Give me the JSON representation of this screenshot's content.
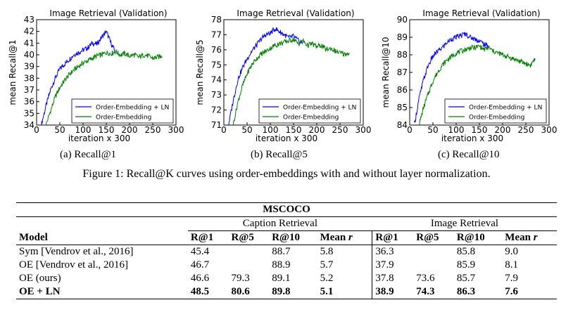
{
  "chart_data": [
    {
      "type": "line",
      "title": "Image Retrieval (Validation)",
      "xlabel": "iteration x 300",
      "ylabel": "mean Recall@1",
      "xlim": [
        0,
        300
      ],
      "ylim": [
        34,
        43
      ],
      "xticks": [
        "0",
        "50",
        "100",
        "150",
        "200",
        "250",
        "300"
      ],
      "yticks": [
        "34",
        "35",
        "36",
        "37",
        "38",
        "39",
        "40",
        "41",
        "42",
        "43"
      ],
      "legend": [
        "Order-Embedding + LN",
        "Order-Embedding"
      ],
      "legend_position": "lower-right",
      "series": [
        {
          "name": "Order-Embedding + LN",
          "color": "#0000ff",
          "x": [
            10,
            20,
            30,
            40,
            50,
            60,
            70,
            80,
            90,
            100,
            110,
            120,
            130,
            140,
            150,
            160,
            170
          ],
          "y": [
            34.0,
            35.6,
            37.0,
            38.0,
            38.8,
            39.2,
            39.6,
            40.0,
            40.2,
            40.4,
            40.6,
            41.0,
            40.9,
            41.5,
            42.0,
            41.0,
            40.2
          ]
        },
        {
          "name": "Order-Embedding",
          "color": "#008000",
          "x": [
            20,
            30,
            40,
            50,
            60,
            70,
            80,
            90,
            100,
            110,
            120,
            130,
            140,
            150,
            160,
            170,
            180,
            190,
            200,
            210,
            220,
            230,
            240,
            250,
            260,
            270
          ],
          "y": [
            34.0,
            35.2,
            36.4,
            37.2,
            37.8,
            38.3,
            38.7,
            39.0,
            39.3,
            39.5,
            39.7,
            39.9,
            40.0,
            40.2,
            40.1,
            40.3,
            40.0,
            40.1,
            39.9,
            40.0,
            39.8,
            40.0,
            39.9,
            39.7,
            39.8,
            39.9
          ]
        }
      ]
    },
    {
      "type": "line",
      "title": "Image Retrieval (Validation)",
      "xlabel": "iteration x 300",
      "ylabel": "mean Recall@5",
      "xlim": [
        0,
        300
      ],
      "ylim": [
        71,
        78
      ],
      "xticks": [
        "0",
        "50",
        "100",
        "150",
        "200",
        "250",
        "300"
      ],
      "yticks": [
        "71",
        "72",
        "73",
        "74",
        "75",
        "76",
        "77",
        "78"
      ],
      "legend": [
        "Order-Embedding + LN",
        "Order-Embedding"
      ],
      "legend_position": "lower-right",
      "series": [
        {
          "name": "Order-Embedding + LN",
          "color": "#0000ff",
          "x": [
            10,
            20,
            30,
            40,
            50,
            60,
            70,
            80,
            90,
            100,
            110,
            120,
            130,
            140,
            150,
            160,
            170
          ],
          "y": [
            71.0,
            72.6,
            74.0,
            74.8,
            75.4,
            75.9,
            76.3,
            76.7,
            77.0,
            77.1,
            77.4,
            77.2,
            77.0,
            76.8,
            76.9,
            76.6,
            76.4
          ]
        },
        {
          "name": "Order-Embedding",
          "color": "#008000",
          "x": [
            20,
            30,
            40,
            50,
            60,
            70,
            80,
            90,
            100,
            110,
            120,
            130,
            140,
            150,
            160,
            170,
            180,
            190,
            200,
            210,
            220,
            230,
            240,
            250,
            260,
            270
          ],
          "y": [
            71.0,
            72.5,
            73.6,
            74.4,
            75.0,
            75.4,
            75.7,
            75.9,
            76.1,
            76.3,
            76.4,
            76.5,
            76.6,
            76.7,
            76.4,
            76.6,
            76.3,
            76.4,
            76.2,
            76.3,
            76.0,
            76.1,
            75.9,
            75.8,
            75.7,
            75.8
          ]
        }
      ]
    },
    {
      "type": "line",
      "title": "Image Retrieval (Validation)",
      "xlabel": "iteration x 300",
      "ylabel": "mean Recall@10",
      "xlim": [
        0,
        300
      ],
      "ylim": [
        84,
        90
      ],
      "xticks": [
        "0",
        "50",
        "100",
        "150",
        "200",
        "250",
        "300"
      ],
      "yticks": [
        "84",
        "85",
        "86",
        "87",
        "88",
        "89",
        "90"
      ],
      "legend": [
        "Order-Embedding + LN",
        "Order-Embedding"
      ],
      "legend_position": "lower-right",
      "series": [
        {
          "name": "Order-Embedding + LN",
          "color": "#0000ff",
          "x": [
            10,
            20,
            30,
            40,
            50,
            60,
            70,
            80,
            90,
            100,
            110,
            120,
            130,
            140,
            150,
            160,
            170
          ],
          "y": [
            84.0,
            85.5,
            86.6,
            87.4,
            87.9,
            88.2,
            88.4,
            88.7,
            88.9,
            89.0,
            89.1,
            89.2,
            89.0,
            88.9,
            88.8,
            88.6,
            88.5
          ]
        },
        {
          "name": "Order-Embedding",
          "color": "#008000",
          "x": [
            20,
            30,
            40,
            50,
            60,
            70,
            80,
            90,
            100,
            110,
            120,
            130,
            140,
            150,
            160,
            170,
            180,
            190,
            200,
            210,
            220,
            230,
            240,
            250,
            260,
            270
          ],
          "y": [
            84.0,
            85.0,
            85.8,
            86.5,
            87.0,
            87.4,
            87.7,
            87.9,
            88.1,
            88.2,
            88.3,
            88.4,
            88.4,
            88.5,
            88.3,
            88.4,
            88.2,
            88.1,
            88.0,
            87.9,
            87.8,
            87.7,
            87.6,
            87.5,
            87.4,
            87.8
          ]
        }
      ]
    }
  ],
  "subcaptions": [
    "(a) Recall@1",
    "(b) Recall@5",
    "(c) Recall@10"
  ],
  "figure_caption": "Figure 1: Recall@K curves using order-embeddings with and without layer normalization.",
  "table": {
    "title": "MSCOCO",
    "group_caption": "Caption Retrieval",
    "group_image": "Image Retrieval",
    "headers": [
      "Model",
      "R@1",
      "R@5",
      "R@10",
      "Mean r",
      "R@1",
      "R@5",
      "R@10",
      "Mean r"
    ],
    "rows": [
      {
        "model": "Sym [Vendrov et al., 2016]",
        "cells": [
          "45.4",
          "",
          "88.7",
          "5.8",
          "36.3",
          "",
          "85.8",
          "9.0"
        ]
      },
      {
        "model": "OE [Vendrov et al., 2016]",
        "cells": [
          "46.7",
          "",
          "88.9",
          "5.7",
          "37.9",
          "",
          "85.9",
          "8.1"
        ]
      },
      {
        "model": "OE (ours)",
        "cells": [
          "46.6",
          "79.3",
          "89.1",
          "5.2",
          "37.8",
          "73.6",
          "85.7",
          "7.9"
        ]
      },
      {
        "model": "OE + LN",
        "cells": [
          "48.5",
          "80.6",
          "89.8",
          "5.1",
          "38.9",
          "74.3",
          "86.3",
          "7.6"
        ]
      }
    ]
  }
}
